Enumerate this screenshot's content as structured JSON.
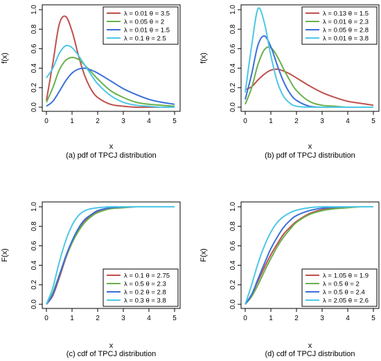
{
  "colors": {
    "c1": "#c0504d",
    "c2": "#6ab04c",
    "c3": "#3a6fd8",
    "c4": "#4ec7e6"
  },
  "chart_data": [
    {
      "id": "a",
      "type": "line",
      "caption": "(a) pdf of TPCJ distribution",
      "xlabel": "x",
      "ylabel": "f(x)",
      "xlim": [
        0,
        5
      ],
      "ylim": [
        0,
        1.0
      ],
      "xticks": [
        "0",
        "1",
        "2",
        "3",
        "4",
        "5"
      ],
      "yticks": [
        "0.0",
        "0.2",
        "0.4",
        "0.6",
        "0.8",
        "1.0"
      ],
      "legend_position": "top-right",
      "x": [
        0,
        0.25,
        0.5,
        0.75,
        1,
        1.25,
        1.5,
        1.75,
        2,
        2.5,
        3,
        3.5,
        4,
        4.5,
        5
      ],
      "series": [
        {
          "lambda": "0.01",
          "theta": "3.5",
          "color": "#c0504d",
          "values": [
            0.07,
            0.45,
            0.85,
            0.93,
            0.78,
            0.53,
            0.32,
            0.18,
            0.1,
            0.03,
            0.01,
            0,
            0,
            0,
            0
          ]
        },
        {
          "lambda": "0.05",
          "theta": "2",
          "color": "#6ab04c",
          "values": [
            0.05,
            0.2,
            0.38,
            0.48,
            0.51,
            0.49,
            0.43,
            0.36,
            0.29,
            0.17,
            0.1,
            0.05,
            0.03,
            0.02,
            0.01
          ]
        },
        {
          "lambda": "0.01",
          "theta": "1.5",
          "color": "#3a6fd8",
          "values": [
            0.01,
            0.06,
            0.16,
            0.27,
            0.35,
            0.39,
            0.4,
            0.38,
            0.35,
            0.27,
            0.19,
            0.13,
            0.08,
            0.05,
            0.03
          ]
        },
        {
          "lambda": "0.1",
          "theta": "2.5",
          "color": "#4ec7e6",
          "values": [
            0.3,
            0.4,
            0.55,
            0.63,
            0.61,
            0.53,
            0.43,
            0.33,
            0.24,
            0.12,
            0.05,
            0.02,
            0.01,
            0,
            0
          ]
        }
      ]
    },
    {
      "id": "b",
      "type": "line",
      "caption": "(b) pdf of TPCJ distribution",
      "xlabel": "x",
      "ylabel": "f(x)",
      "xlim": [
        0,
        5
      ],
      "ylim": [
        0,
        1.0
      ],
      "xticks": [
        "0",
        "1",
        "2",
        "3",
        "4",
        "5"
      ],
      "yticks": [
        "0.0",
        "0.2",
        "0.4",
        "0.6",
        "0.8",
        "1.0"
      ],
      "legend_position": "top-right",
      "x": [
        0,
        0.25,
        0.5,
        0.75,
        1,
        1.25,
        1.5,
        1.75,
        2,
        2.5,
        3,
        3.5,
        4,
        4.5,
        5
      ],
      "series": [
        {
          "lambda": "0.13",
          "theta": "1.5",
          "color": "#c0504d",
          "values": [
            0.18,
            0.21,
            0.28,
            0.34,
            0.38,
            0.39,
            0.37,
            0.34,
            0.3,
            0.22,
            0.15,
            0.1,
            0.06,
            0.04,
            0.02
          ]
        },
        {
          "lambda": "0.01",
          "theta": "2.3",
          "color": "#6ab04c",
          "values": [
            0.03,
            0.2,
            0.44,
            0.59,
            0.61,
            0.52,
            0.39,
            0.27,
            0.17,
            0.06,
            0.02,
            0.01,
            0,
            0,
            0
          ]
        },
        {
          "lambda": "0.05",
          "theta": "2.8",
          "color": "#3a6fd8",
          "values": [
            0.08,
            0.34,
            0.64,
            0.73,
            0.62,
            0.43,
            0.26,
            0.14,
            0.07,
            0.01,
            0,
            0,
            0,
            0,
            0
          ]
        },
        {
          "lambda": "0.01",
          "theta": "3.8",
          "color": "#4ec7e6",
          "values": [
            0.15,
            0.63,
            1.01,
            0.86,
            0.53,
            0.26,
            0.11,
            0.04,
            0.01,
            0,
            0,
            0,
            0,
            0,
            0
          ]
        }
      ]
    },
    {
      "id": "c",
      "type": "line",
      "caption": "(c) cdf of TPCJ distribution",
      "xlabel": "x",
      "ylabel": "F(x)",
      "xlim": [
        0,
        5
      ],
      "ylim": [
        0,
        1.0
      ],
      "xticks": [
        "0",
        "1",
        "2",
        "3",
        "4",
        "5"
      ],
      "yticks": [
        "0.0",
        "0.2",
        "0.4",
        "0.6",
        "0.8",
        "1.0"
      ],
      "legend_position": "bottom-right",
      "x": [
        0,
        0.25,
        0.5,
        0.75,
        1,
        1.25,
        1.5,
        1.75,
        2,
        2.5,
        3,
        3.5,
        4,
        4.5,
        5
      ],
      "series": [
        {
          "lambda": "0.1",
          "theta": "2.75",
          "color": "#c0504d",
          "values": [
            0,
            0.09,
            0.27,
            0.47,
            0.63,
            0.76,
            0.85,
            0.91,
            0.95,
            0.985,
            0.996,
            1,
            1,
            1,
            1
          ]
        },
        {
          "lambda": "0.5",
          "theta": "2.3",
          "color": "#6ab04c",
          "values": [
            0,
            0.12,
            0.3,
            0.48,
            0.63,
            0.75,
            0.84,
            0.9,
            0.94,
            0.98,
            0.99,
            1,
            1,
            1,
            1
          ]
        },
        {
          "lambda": "0.2",
          "theta": "2.8",
          "color": "#3a6fd8",
          "values": [
            0,
            0.1,
            0.29,
            0.49,
            0.65,
            0.78,
            0.87,
            0.92,
            0.96,
            0.99,
            0.997,
            1,
            1,
            1,
            1
          ]
        },
        {
          "lambda": "0.3",
          "theta": "3.8",
          "color": "#4ec7e6",
          "values": [
            0,
            0.17,
            0.43,
            0.65,
            0.81,
            0.91,
            0.96,
            0.98,
            0.99,
            1,
            1,
            1,
            1,
            1,
            1
          ]
        }
      ]
    },
    {
      "id": "d",
      "type": "line",
      "caption": "(d) cdf of TPCJ distribution",
      "xlabel": "x",
      "ylabel": "F(x)",
      "xlim": [
        0,
        5
      ],
      "ylim": [
        0,
        1.0
      ],
      "xticks": [
        "0",
        "1",
        "2",
        "3",
        "4",
        "5"
      ],
      "yticks": [
        "0.0",
        "0.2",
        "0.4",
        "0.6",
        "0.8",
        "1.0"
      ],
      "legend_position": "bottom-right",
      "x": [
        0,
        0.25,
        0.5,
        0.75,
        1,
        1.25,
        1.5,
        1.75,
        2,
        2.5,
        3,
        3.5,
        4,
        4.5,
        5
      ],
      "series": [
        {
          "lambda": "1.05",
          "theta": "1.9",
          "color": "#c0504d",
          "values": [
            0,
            0.1,
            0.24,
            0.38,
            0.51,
            0.62,
            0.72,
            0.79,
            0.85,
            0.93,
            0.97,
            0.99,
            0.995,
            1,
            1
          ]
        },
        {
          "lambda": "0.5",
          "theta": "2",
          "color": "#6ab04c",
          "values": [
            0,
            0.08,
            0.2,
            0.34,
            0.47,
            0.59,
            0.69,
            0.77,
            0.84,
            0.92,
            0.96,
            0.98,
            0.99,
            1,
            1
          ]
        },
        {
          "lambda": "0.5",
          "theta": "2.4",
          "color": "#3a6fd8",
          "values": [
            0,
            0.1,
            0.26,
            0.42,
            0.57,
            0.69,
            0.79,
            0.86,
            0.91,
            0.96,
            0.985,
            0.995,
            1,
            1,
            1
          ]
        },
        {
          "lambda": "2.05",
          "theta": "2.6",
          "color": "#4ec7e6",
          "values": [
            0,
            0.2,
            0.42,
            0.6,
            0.74,
            0.84,
            0.9,
            0.94,
            0.965,
            0.99,
            1,
            1,
            1,
            1,
            1
          ]
        }
      ]
    }
  ]
}
